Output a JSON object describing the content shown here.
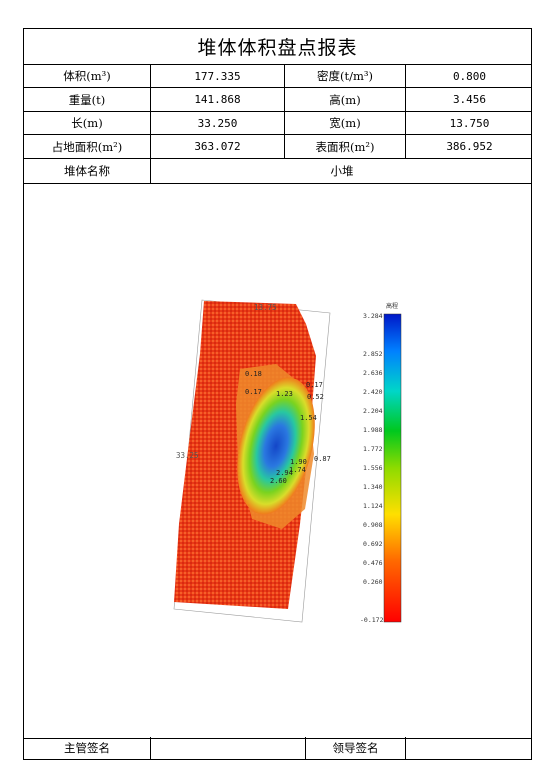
{
  "report": {
    "title": "堆体体积盘点报表",
    "rows": [
      {
        "label1": "体积(m³)",
        "value1": "177.335",
        "label2": "密度(t/m³)",
        "value2": "0.800"
      },
      {
        "label1": "重量(t)",
        "value1": "141.868",
        "label2": "高(m)",
        "value2": "3.456"
      },
      {
        "label1": "长(m)",
        "value1": "33.250",
        "label2": "宽(m)",
        "value2": "13.750"
      },
      {
        "label1": "占地面积(m²)",
        "value1": "363.072",
        "label2": "表面积(m²)",
        "value2": "386.952"
      }
    ],
    "name_label": "堆体名称",
    "name_value": "小堆",
    "footer": {
      "supervisor_label": "主管签名",
      "leader_label": "领导签名"
    }
  },
  "figure": {
    "width_dim": "13.75",
    "length_dim": "33.25",
    "legend_title": "高程",
    "legend_ticks": [
      "3.284",
      "2.852",
      "2.636",
      "2.420",
      "2.204",
      "1.988",
      "1.772",
      "1.556",
      "1.340",
      "1.124",
      "0.908",
      "0.692",
      "0.476",
      "0.260",
      "-0.172"
    ],
    "annotations": [
      "0.18",
      "0.17",
      "0.17",
      "1.23",
      "0.52",
      "1.54",
      "1.90",
      "0.87",
      "2.94",
      "1.74",
      "2.60"
    ],
    "colors": {
      "low": "#e8220c",
      "mid": "#7ad31f",
      "high": "#1446c8"
    }
  }
}
